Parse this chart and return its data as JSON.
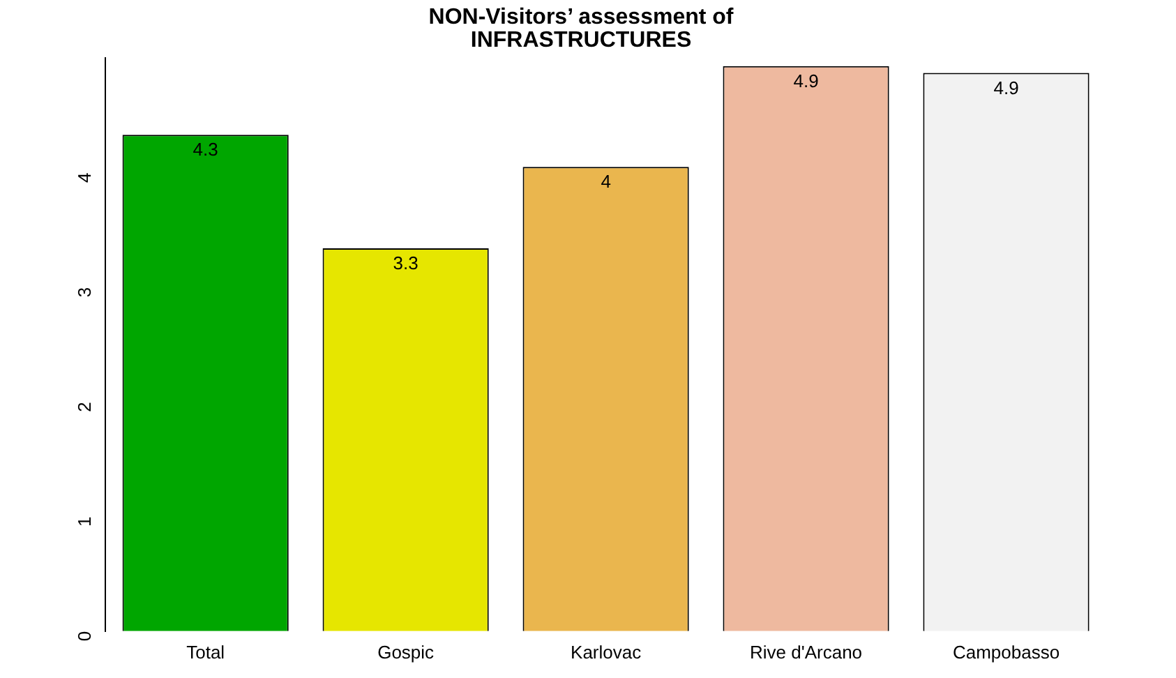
{
  "chart_data": {
    "type": "bar",
    "title": "NON-Visitors’ assessment of\nINFRASTRUCTURES",
    "categories": [
      "Total",
      "Gospic",
      "Karlovac",
      "Rive d'Arcano",
      "Campobasso"
    ],
    "values": [
      4.33,
      3.34,
      4.05,
      4.93,
      4.87
    ],
    "value_labels": [
      "4.3",
      "3.3",
      "4",
      "4.9",
      "4.9"
    ],
    "colors": [
      "#00a600",
      "#e6e600",
      "#eab64e",
      "#eeb99f",
      "#f2f2f2"
    ],
    "ylim": [
      0,
      5
    ],
    "yticks": [
      0,
      1,
      2,
      3,
      4
    ],
    "grid": false,
    "legend": false
  }
}
